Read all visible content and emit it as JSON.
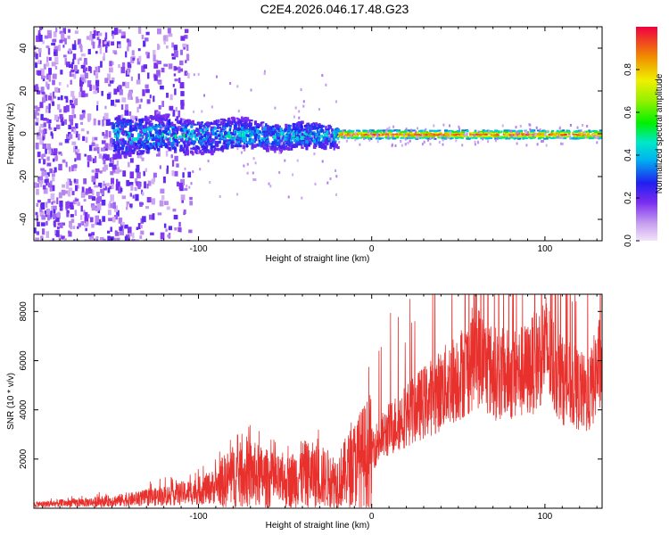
{
  "title": "C2E4.2026.046.17.48.G23",
  "chart_data": [
    {
      "type": "heatmap",
      "xlabel": "Height of straight line (km)",
      "ylabel": "Frequency (Hz)",
      "xlim": [
        -195,
        133
      ],
      "ylim": [
        -50,
        50
      ],
      "xticks": [
        -100,
        0,
        100
      ],
      "xtick_labels": [
        "-100",
        "0",
        "100"
      ],
      "yticks": [
        -40,
        -20,
        0,
        20,
        40
      ],
      "ytick_labels": [
        "-40",
        "-20",
        "0",
        "20",
        "40"
      ],
      "colorbar": {
        "label": "Normalized spectral amplitude",
        "range": [
          0,
          1
        ],
        "ticks": [
          0,
          0.2,
          0.4,
          0.6,
          0.8
        ],
        "tick_labels": [
          "0.0",
          "0.2",
          "0.4",
          "0.6",
          "0.8"
        ]
      },
      "description_regions": [
        {
          "x_range": [
            -195,
            -110
          ],
          "freq_spread_hz": 50,
          "amplitude": [
            0.05,
            0.2
          ]
        },
        {
          "x_range": [
            -150,
            -20
          ],
          "freq_spread_hz": 8,
          "amplitude": [
            0.2,
            0.45
          ]
        },
        {
          "x_range": [
            -20,
            133
          ],
          "freq_spread_hz": 2,
          "amplitude": [
            0.6,
            0.95
          ]
        }
      ]
    },
    {
      "type": "line",
      "xlabel": "Height of straight line (km)",
      "ylabel": "SNR (10 * v/v)",
      "xlim": [
        -195,
        133
      ],
      "ylim": [
        0,
        8700
      ],
      "xticks": [
        -100,
        0,
        100
      ],
      "xtick_labels": [
        "-100",
        "0",
        "100"
      ],
      "yticks": [
        2000,
        4000,
        6000,
        8000
      ],
      "ytick_labels": [
        "2000",
        "4000",
        "6000",
        "8000"
      ],
      "series": [
        {
          "name": "SNR",
          "color": "#e8302c",
          "x": [
            -195,
            -180,
            -160,
            -140,
            -120,
            -100,
            -90,
            -80,
            -70,
            -60,
            -50,
            -40,
            -30,
            -20,
            -10,
            0,
            10,
            20,
            30,
            40,
            50,
            55,
            60,
            65,
            70,
            80,
            90,
            95,
            100,
            105,
            110,
            120,
            125,
            130,
            133
          ],
          "y": [
            150,
            200,
            250,
            350,
            500,
            700,
            900,
            1300,
            1400,
            1200,
            1000,
            1400,
            1300,
            1100,
            1800,
            2400,
            3200,
            3800,
            4300,
            4800,
            5400,
            5700,
            6300,
            5900,
            5500,
            5400,
            5600,
            6000,
            6600,
            5800,
            5200,
            4800,
            4500,
            5600,
            6000
          ]
        }
      ]
    }
  ]
}
